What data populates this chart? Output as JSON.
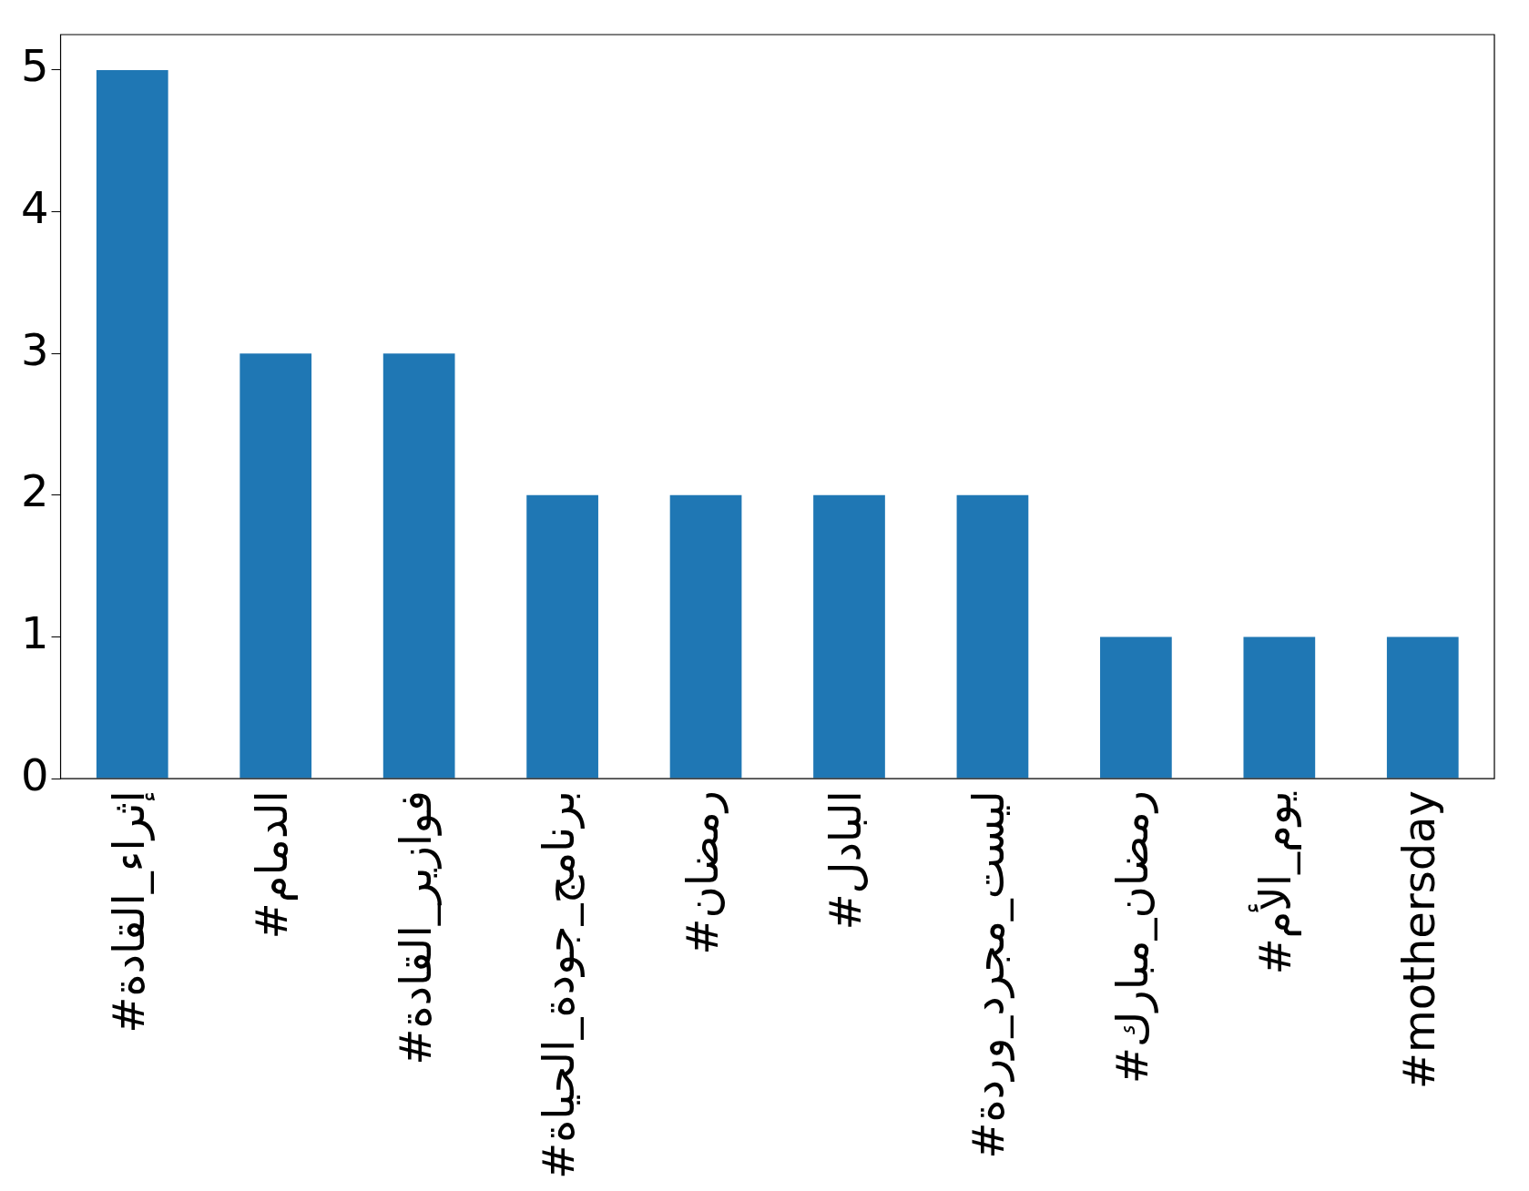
{
  "chart_data": {
    "type": "bar",
    "categories": [
      "#إثراء_القادة",
      "#الدمام",
      "#فوازير_القادة",
      "#برنامج_جودة_الحياة",
      "#رمضان",
      "#البادل",
      "#ليست_مجرد_وردة",
      "#رمضان_مبارك",
      "#يوم_الأم",
      "#mothersday"
    ],
    "values": [
      5,
      3,
      3,
      2,
      2,
      2,
      2,
      1,
      1,
      1
    ],
    "color": "#1f77b4",
    "ylim": [
      0,
      5.25
    ],
    "yticks": [
      0,
      1,
      2,
      3,
      4,
      5
    ],
    "grid": false,
    "legend": false
  }
}
